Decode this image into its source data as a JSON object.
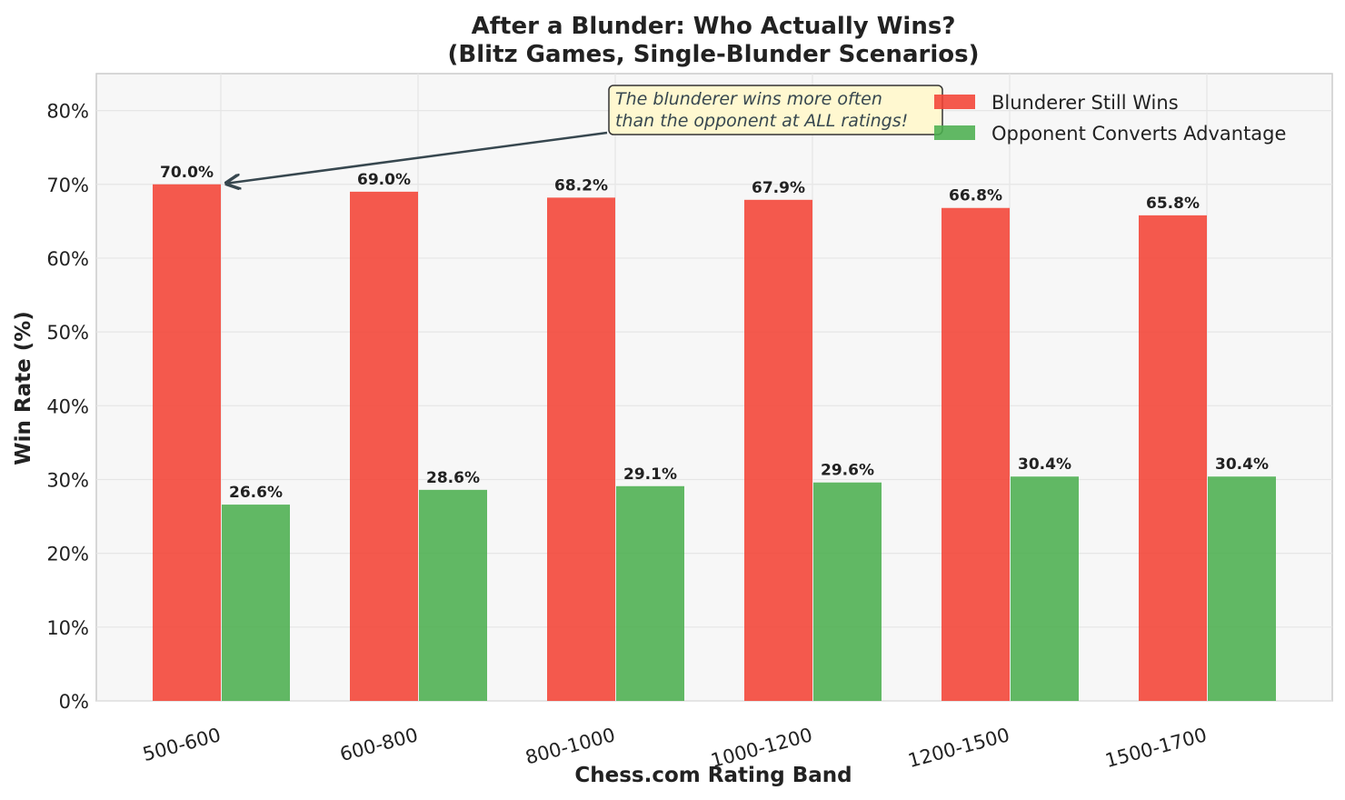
{
  "chart_data": {
    "type": "bar",
    "title": "After a Blunder: Who Actually Wins?",
    "subtitle": "(Blitz Games, Single-Blunder Scenarios)",
    "xlabel": "Chess.com Rating Band",
    "ylabel": "Win Rate (%)",
    "categories": [
      "500-600",
      "600-800",
      "800-1000",
      "1000-1200",
      "1200-1500",
      "1500-1700"
    ],
    "series": [
      {
        "name": "Blunderer Still Wins",
        "color": "#f44336",
        "values": [
          70.0,
          69.0,
          68.2,
          67.9,
          66.8,
          65.8
        ],
        "labels": [
          "70.0%",
          "69.0%",
          "68.2%",
          "67.9%",
          "66.8%",
          "65.8%"
        ]
      },
      {
        "name": "Opponent Converts Advantage",
        "color": "#4caf50",
        "values": [
          26.6,
          28.6,
          29.1,
          29.6,
          30.4,
          30.4
        ],
        "labels": [
          "26.6%",
          "28.6%",
          "29.1%",
          "29.6%",
          "30.4%",
          "30.4%"
        ]
      }
    ],
    "ylim": [
      0,
      85
    ],
    "yticks": [
      0,
      10,
      20,
      30,
      40,
      50,
      60,
      70,
      80
    ],
    "ytick_labels": [
      "0%",
      "10%",
      "20%",
      "30%",
      "40%",
      "50%",
      "60%",
      "70%",
      "80%"
    ],
    "grid": true,
    "legend_position": "top-right",
    "annotation": {
      "lines": [
        "The blunderer wins more often",
        "than the opponent at ALL ratings!"
      ],
      "points_to": {
        "category": "500-600",
        "value": 70.0
      }
    },
    "colors": {
      "plot_background": "#f7f7f7",
      "grid": "#e6e6e6",
      "annotation_box": "#fff8d0",
      "annotation_arrow": "#37474f"
    }
  }
}
